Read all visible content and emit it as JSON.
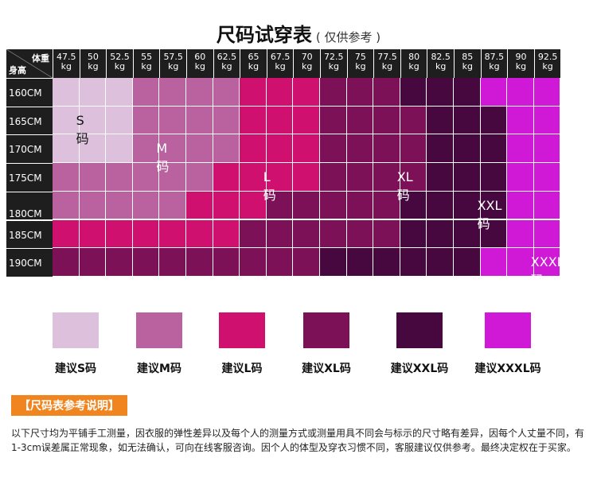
{
  "title": {
    "main": "尺码试穿表",
    "sub": "( 仅供参考 )"
  },
  "header": {
    "weight_label": "体重",
    "height_label": "身高"
  },
  "weights": [
    {
      "value": "47.5",
      "unit": "kg"
    },
    {
      "value": "50",
      "unit": "kg"
    },
    {
      "value": "52.5",
      "unit": "kg"
    },
    {
      "value": "55",
      "unit": "kg"
    },
    {
      "value": "57.5",
      "unit": "kg"
    },
    {
      "value": "60",
      "unit": "kg"
    },
    {
      "value": "62.5",
      "unit": "kg"
    },
    {
      "value": "65",
      "unit": "kg"
    },
    {
      "value": "67.5",
      "unit": "kg"
    },
    {
      "value": "70",
      "unit": "kg"
    },
    {
      "value": "72.5",
      "unit": "kg"
    },
    {
      "value": "75",
      "unit": "kg"
    },
    {
      "value": "77.5",
      "unit": "kg"
    },
    {
      "value": "80",
      "unit": "kg"
    },
    {
      "value": "82.5",
      "unit": "kg"
    },
    {
      "value": "85",
      "unit": "kg"
    },
    {
      "value": "87.5",
      "unit": "kg"
    },
    {
      "value": "90",
      "unit": "kg"
    },
    {
      "value": "92.5",
      "unit": "kg"
    }
  ],
  "heights": [
    "160CM",
    "165CM",
    "170CM",
    "175CM",
    "180CM",
    "185CM",
    "190CM"
  ],
  "size_colors": {
    "S": "#dcc0dc",
    "M": "#b9629f",
    "L": "#d0106e",
    "XL": "#7c1158",
    "XXL": "#46083f",
    "XXXL": "#cf19d7"
  },
  "grid": [
    [
      "S",
      "S",
      "S",
      "M",
      "M",
      "M",
      "M",
      "L",
      "L",
      "L",
      "XL",
      "XL",
      "XL",
      "XXL",
      "XXL",
      "XXL",
      "XXXL",
      "XXXL",
      "XXXL"
    ],
    [
      "S",
      "S",
      "S",
      "M",
      "M",
      "M",
      "M",
      "L",
      "L",
      "L",
      "XL",
      "XL",
      "XL",
      "XL",
      "XXL",
      "XXL",
      "XXL",
      "XXXL",
      "XXXL"
    ],
    [
      "S",
      "S",
      "S",
      "M",
      "M",
      "M",
      "M",
      "L",
      "L",
      "L",
      "XL",
      "XL",
      "XL",
      "XL",
      "XXL",
      "XXL",
      "XXL",
      "XXXL",
      "XXXL"
    ],
    [
      "M",
      "M",
      "M",
      "M",
      "M",
      "M",
      "L",
      "L",
      "L",
      "L",
      "XL",
      "XL",
      "XL",
      "XL",
      "XXL",
      "XXL",
      "XXL",
      "XXXL",
      "XXXL"
    ],
    [
      "M",
      "M",
      "M",
      "M",
      "M",
      "L",
      "L",
      "L",
      "XL",
      "XL",
      "XL",
      "XL",
      "XL",
      "XXL",
      "XXL",
      "XXL",
      "XXL",
      "XXXL",
      "XXXL"
    ],
    [
      "L",
      "L",
      "L",
      "L",
      "L",
      "L",
      "L",
      "XL",
      "XL",
      "XL",
      "XL",
      "XL",
      "XL",
      "XXL",
      "XXL",
      "XXL",
      "XXL",
      "XXXL",
      "XXXL"
    ],
    [
      "XL",
      "XL",
      "XL",
      "XL",
      "XL",
      "XL",
      "XL",
      "XL",
      "XL",
      "XL",
      "XXL",
      "XXL",
      "XXL",
      "XXL",
      "XXL",
      "XXL",
      "XXXL",
      "XXXL",
      "XXXL"
    ]
  ],
  "region_labels": [
    {
      "text": "S码",
      "row": 1,
      "col": 1
    },
    {
      "text": "M码",
      "row": 2,
      "col": 4
    },
    {
      "text": "L码",
      "row": 3,
      "col": 8
    },
    {
      "text": "XL码",
      "row": 3,
      "col": 13
    },
    {
      "text": "XXL码",
      "row": 4,
      "col": 16
    },
    {
      "text": "XXXL码",
      "row": 6,
      "col": 18
    }
  ],
  "legend": [
    {
      "size": "S",
      "label": "建议S码"
    },
    {
      "size": "M",
      "label": "建议M码"
    },
    {
      "size": "L",
      "label": "建议L码"
    },
    {
      "size": "XL",
      "label": "建议XL码"
    },
    {
      "size": "XXL",
      "label": "建议XXL码"
    },
    {
      "size": "XXXL",
      "label": "建议XXXL码"
    }
  ],
  "note": {
    "badge": "【尺码表参考说明】",
    "text": "以下尺寸均为平铺手工测量，因衣服的弹性差异以及每个人的测量方式或测量用具不同会与标示的尺寸略有差异，因每个人丈量不同，有1-3cm误差属正常现象，如无法确认，可向在线客服咨询。因个人的体型及穿衣习惯不同，客服建议仅供参考。最终决定权在于买家。"
  }
}
